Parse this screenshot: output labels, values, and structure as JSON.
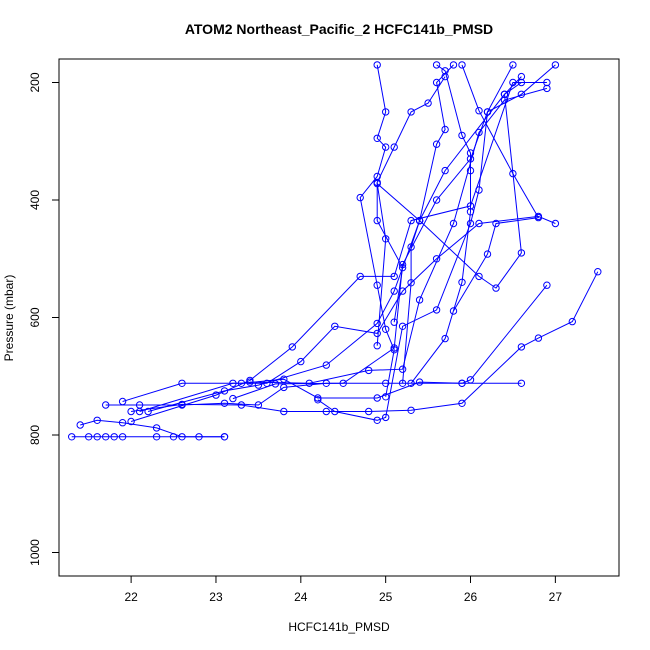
{
  "chart_data": {
    "type": "line",
    "title": "ATOM2 Northeast_Pacific_2 HCFC141b_PMSD",
    "xlabel": "HCFC141b_PMSD",
    "ylabel": "Pressure (mbar)",
    "xlim": [
      21.15,
      27.75
    ],
    "ylim": [
      1040,
      160
    ],
    "y_reversed": true,
    "x_ticks": [
      22,
      23,
      24,
      25,
      26,
      27
    ],
    "y_ticks": [
      200,
      400,
      600,
      800,
      1000
    ],
    "grid": false,
    "legend": "none",
    "color": "#0000ff",
    "markers": "open-circle",
    "series": [
      {
        "points": [
          [
            21.3,
            803
          ],
          [
            21.5,
            803
          ],
          [
            21.6,
            803
          ],
          [
            21.7,
            803
          ],
          [
            21.8,
            803
          ],
          [
            21.9,
            803
          ],
          [
            22.3,
            803
          ],
          [
            22.5,
            803
          ],
          [
            22.8,
            803
          ],
          [
            23.1,
            803
          ]
        ]
      },
      {
        "points": [
          [
            21.4,
            783
          ],
          [
            21.6,
            775
          ],
          [
            21.9,
            779
          ],
          [
            22.3,
            788
          ],
          [
            22.6,
            803
          ],
          [
            23.1,
            803
          ]
        ]
      },
      {
        "points": [
          [
            21.7,
            749
          ],
          [
            22.1,
            749
          ],
          [
            22.6,
            749
          ],
          [
            23.1,
            746
          ],
          [
            23.5,
            749
          ],
          [
            23.8,
            719
          ],
          [
            24.3,
            712
          ],
          [
            25.0,
            712
          ],
          [
            25.9,
            712
          ],
          [
            26.6,
            712
          ]
        ]
      },
      {
        "points": [
          [
            22.0,
            760
          ],
          [
            22.6,
            748
          ],
          [
            23.3,
            749
          ],
          [
            23.8,
            760
          ],
          [
            24.3,
            760
          ],
          [
            24.8,
            760
          ],
          [
            25.3,
            758
          ],
          [
            25.9,
            746
          ],
          [
            26.6,
            650
          ],
          [
            26.8,
            635
          ],
          [
            27.2,
            607
          ],
          [
            27.5,
            522
          ]
        ]
      },
      {
        "points": [
          [
            21.9,
            743
          ],
          [
            22.6,
            712
          ],
          [
            23.3,
            712
          ],
          [
            23.8,
            705
          ],
          [
            24.2,
            737
          ],
          [
            24.9,
            737
          ],
          [
            25.4,
            710
          ],
          [
            25.9,
            712
          ],
          [
            26.0,
            706
          ],
          [
            26.9,
            545
          ]
        ]
      },
      {
        "points": [
          [
            22.1,
            760
          ],
          [
            23.2,
            712
          ],
          [
            23.6,
            712
          ],
          [
            24.0,
            675
          ],
          [
            24.4,
            615
          ],
          [
            24.9,
            627
          ],
          [
            25.2,
            555
          ],
          [
            25.6,
            500
          ],
          [
            26.1,
            440
          ],
          [
            26.8,
            428
          ],
          [
            27.0,
            440
          ]
        ]
      },
      {
        "points": [
          [
            22.0,
            777
          ],
          [
            23.0,
            732
          ],
          [
            23.4,
            707
          ],
          [
            23.9,
            650
          ],
          [
            24.7,
            530
          ],
          [
            25.1,
            530
          ],
          [
            25.3,
            435
          ],
          [
            26.0,
            410
          ],
          [
            26.5,
            200
          ],
          [
            26.9,
            200
          ]
        ]
      },
      {
        "points": [
          [
            22.2,
            760
          ],
          [
            23.1,
            725
          ],
          [
            23.5,
            715
          ],
          [
            24.3,
            681
          ],
          [
            24.9,
            610
          ],
          [
            25.1,
            555
          ],
          [
            25.4,
            435
          ],
          [
            25.7,
            350
          ],
          [
            26.4,
            220
          ],
          [
            26.6,
            200
          ]
        ]
      },
      {
        "points": [
          [
            23.2,
            738
          ],
          [
            23.7,
            713
          ],
          [
            24.5,
            712
          ],
          [
            25.1,
            652
          ],
          [
            25.2,
            510
          ],
          [
            25.6,
            400
          ],
          [
            26.0,
            330
          ],
          [
            26.2,
            250
          ],
          [
            26.6,
            220
          ],
          [
            27.0,
            170
          ]
        ]
      },
      {
        "points": [
          [
            23.4,
            710
          ],
          [
            24.1,
            712
          ],
          [
            24.8,
            690
          ],
          [
            25.2,
            688
          ],
          [
            25.4,
            570
          ],
          [
            25.8,
            440
          ],
          [
            26.1,
            285
          ],
          [
            26.4,
            230
          ],
          [
            26.9,
            210
          ]
        ]
      },
      {
        "points": [
          [
            24.2,
            740
          ],
          [
            24.4,
            760
          ],
          [
            24.9,
            775
          ],
          [
            25.0,
            770
          ],
          [
            25.2,
            615
          ],
          [
            25.6,
            587
          ],
          [
            26.0,
            440
          ],
          [
            26.1,
            383
          ],
          [
            26.2,
            250
          ],
          [
            26.5,
            170
          ]
        ]
      },
      {
        "points": [
          [
            25.0,
            735
          ],
          [
            25.1,
            655
          ],
          [
            25.0,
            620
          ],
          [
            24.9,
            545
          ],
          [
            24.7,
            396
          ],
          [
            24.9,
            360
          ],
          [
            25.0,
            310
          ],
          [
            24.9,
            295
          ],
          [
            25.0,
            250
          ],
          [
            24.9,
            170
          ]
        ]
      },
      {
        "points": [
          [
            25.3,
            712
          ],
          [
            25.7,
            636
          ],
          [
            25.9,
            540
          ],
          [
            26.0,
            420
          ],
          [
            26.0,
            350
          ],
          [
            26.0,
            320
          ],
          [
            25.9,
            290
          ],
          [
            25.7,
            180
          ],
          [
            25.6,
            170
          ]
        ]
      },
      {
        "points": [
          [
            25.2,
            712
          ],
          [
            25.3,
            541
          ],
          [
            25.3,
            480
          ],
          [
            25.4,
            435
          ],
          [
            25.6,
            305
          ],
          [
            25.7,
            280
          ],
          [
            25.6,
            200
          ],
          [
            25.8,
            170
          ]
        ]
      },
      {
        "points": [
          [
            25.1,
            608
          ],
          [
            25.2,
            515
          ],
          [
            24.9,
            435
          ],
          [
            24.9,
            370
          ],
          [
            25.1,
            310
          ],
          [
            25.3,
            250
          ],
          [
            25.5,
            235
          ],
          [
            25.7,
            190
          ]
        ]
      },
      {
        "points": [
          [
            24.9,
            648
          ],
          [
            25.0,
            466
          ],
          [
            24.9,
            372
          ],
          [
            25.4,
            435
          ],
          [
            26.1,
            530
          ],
          [
            26.3,
            550
          ],
          [
            26.6,
            490
          ],
          [
            26.4,
            220
          ],
          [
            26.6,
            190
          ]
        ]
      },
      {
        "points": [
          [
            25.8,
            589
          ],
          [
            26.2,
            492
          ],
          [
            26.3,
            440
          ],
          [
            26.8,
            430
          ],
          [
            26.5,
            355
          ],
          [
            26.1,
            248
          ],
          [
            25.9,
            170
          ]
        ]
      }
    ]
  }
}
